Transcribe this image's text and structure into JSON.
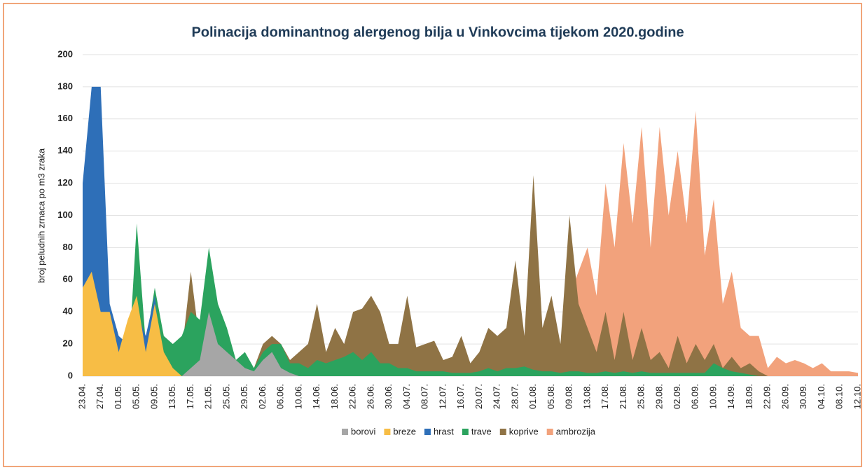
{
  "chart_data": {
    "type": "area",
    "title": "Polinacija dominantnog  alergenog bilja u Vinkovcima tijekom 2020.godine",
    "ylabel": "broj peludnih zrnaca po m3 zraka",
    "categories": [
      "23.04.",
      null,
      "27.04.",
      null,
      "01.05.",
      null,
      "05.05.",
      null,
      "09.05.",
      null,
      "13.05.",
      null,
      "17.05.",
      null,
      "21.05.",
      null,
      "25.05.",
      null,
      "29.05.",
      null,
      "02.06.",
      null,
      "06.06.",
      null,
      "10.06.",
      null,
      "14.06.",
      null,
      "18.06.",
      null,
      "22.06.",
      null,
      "26.06.",
      null,
      "30.06.",
      null,
      "04.07.",
      null,
      "08.07.",
      null,
      "12.07.",
      null,
      "16.07.",
      null,
      "20.07.",
      null,
      "24.07.",
      null,
      "28.07.",
      null,
      "01.08.",
      null,
      "05.08.",
      null,
      "09.08.",
      null,
      "13.08.",
      null,
      "17.08.",
      null,
      "21.08.",
      null,
      "25.08.",
      null,
      "29.08.",
      null,
      "02.09.",
      null,
      "06.09.",
      null,
      "10.09.",
      null,
      "14.09.",
      null,
      "18.09.",
      null,
      "22.09.",
      null,
      "26.09.",
      null,
      "30.09.",
      null,
      "04.10.",
      null,
      "08.10.",
      null,
      "12.10."
    ],
    "ylim": [
      0,
      200
    ],
    "yticks": [
      0,
      20,
      40,
      60,
      80,
      100,
      120,
      140,
      160,
      180,
      200
    ],
    "grid": true,
    "legend": "bottom",
    "series": [
      {
        "name": "borovi",
        "color": "#a6a6a6",
        "values": [
          0,
          0,
          0,
          0,
          0,
          0,
          0,
          0,
          0,
          0,
          0,
          0,
          5,
          10,
          40,
          20,
          15,
          10,
          5,
          3,
          10,
          15,
          5,
          2,
          0,
          0,
          0,
          0,
          0,
          0,
          0,
          0,
          0,
          0,
          0,
          0,
          0,
          0,
          0,
          0,
          0,
          0,
          0,
          0,
          0,
          0,
          0,
          0,
          0,
          0,
          0,
          0,
          0,
          0,
          0,
          0,
          0,
          0,
          0,
          0,
          0,
          0,
          0,
          0,
          0,
          0,
          0,
          0,
          0,
          0,
          0,
          0,
          0,
          0,
          0,
          0,
          0,
          0,
          0,
          0,
          0,
          0,
          0,
          0,
          0,
          0,
          0
        ]
      },
      {
        "name": "breze",
        "color": "#f7bd45",
        "values": [
          55,
          65,
          40,
          40,
          15,
          35,
          50,
          15,
          45,
          15,
          5,
          0,
          0,
          0,
          0,
          0,
          0,
          0,
          0,
          0,
          0,
          0,
          0,
          0,
          0,
          0,
          0,
          0,
          0,
          0,
          0,
          0,
          0,
          0,
          0,
          0,
          0,
          0,
          0,
          0,
          0,
          0,
          0,
          0,
          0,
          0,
          0,
          0,
          0,
          0,
          0,
          0,
          0,
          0,
          0,
          0,
          0,
          0,
          0,
          0,
          0,
          0,
          0,
          0,
          0,
          0,
          0,
          0,
          0,
          0,
          0,
          0,
          0,
          0,
          0,
          0,
          0,
          0,
          0,
          0,
          0,
          0,
          0,
          0,
          0,
          0,
          0
        ]
      },
      {
        "name": "hrast",
        "color": "#2e6fb8",
        "values": [
          120,
          180,
          180,
          45,
          25,
          20,
          40,
          25,
          50,
          0,
          0,
          0,
          0,
          0,
          0,
          0,
          0,
          0,
          0,
          0,
          0,
          0,
          0,
          0,
          0,
          0,
          0,
          0,
          0,
          0,
          0,
          0,
          0,
          0,
          0,
          0,
          0,
          0,
          0,
          0,
          0,
          0,
          0,
          0,
          0,
          0,
          0,
          0,
          0,
          0,
          0,
          0,
          0,
          0,
          0,
          0,
          0,
          0,
          0,
          0,
          0,
          0,
          0,
          0,
          0,
          0,
          0,
          0,
          0,
          0,
          0,
          0,
          0,
          0,
          0,
          0,
          0,
          0,
          0,
          0,
          0,
          0,
          0,
          0,
          0,
          0,
          0
        ]
      },
      {
        "name": "trave",
        "color": "#2ba35e",
        "values": [
          0,
          0,
          0,
          0,
          0,
          0,
          95,
          20,
          55,
          25,
          20,
          25,
          40,
          35,
          80,
          45,
          30,
          10,
          15,
          5,
          15,
          20,
          20,
          8,
          8,
          5,
          10,
          8,
          10,
          12,
          15,
          10,
          15,
          8,
          8,
          5,
          5,
          3,
          3,
          3,
          3,
          2,
          2,
          2,
          3,
          5,
          3,
          5,
          5,
          6,
          4,
          3,
          3,
          2,
          3,
          3,
          2,
          2,
          3,
          2,
          3,
          2,
          3,
          2,
          2,
          2,
          2,
          2,
          2,
          2,
          8,
          5,
          3,
          2,
          1,
          0,
          0,
          0,
          0,
          0,
          0,
          0,
          0,
          0,
          0,
          0,
          0
        ]
      },
      {
        "name": "koprive",
        "color": "#8f7345",
        "values": [
          0,
          0,
          0,
          0,
          0,
          0,
          0,
          0,
          0,
          0,
          0,
          15,
          65,
          20,
          30,
          20,
          15,
          10,
          10,
          5,
          20,
          25,
          20,
          10,
          15,
          20,
          45,
          15,
          30,
          20,
          40,
          42,
          50,
          40,
          20,
          20,
          50,
          18,
          20,
          22,
          10,
          12,
          25,
          8,
          15,
          30,
          25,
          30,
          72,
          25,
          125,
          30,
          50,
          20,
          100,
          45,
          30,
          15,
          40,
          10,
          40,
          10,
          30,
          10,
          15,
          5,
          25,
          8,
          20,
          10,
          20,
          5,
          12,
          5,
          8,
          3,
          0,
          0,
          0,
          0,
          0,
          0,
          0,
          0,
          0,
          0,
          0
        ]
      },
      {
        "name": "ambrozija",
        "color": "#f2a27c",
        "values": [
          0,
          0,
          0,
          0,
          0,
          0,
          0,
          0,
          0,
          0,
          0,
          0,
          0,
          0,
          0,
          0,
          0,
          0,
          0,
          0,
          0,
          0,
          0,
          0,
          0,
          0,
          0,
          0,
          0,
          0,
          0,
          0,
          0,
          0,
          0,
          0,
          0,
          0,
          0,
          0,
          0,
          0,
          0,
          0,
          0,
          0,
          0,
          0,
          0,
          0,
          0,
          0,
          0,
          10,
          50,
          65,
          80,
          50,
          120,
          80,
          145,
          95,
          155,
          80,
          155,
          100,
          140,
          95,
          165,
          75,
          110,
          45,
          65,
          30,
          25,
          25,
          5,
          12,
          8,
          10,
          8,
          5,
          8,
          3,
          3,
          3,
          2
        ]
      }
    ]
  }
}
